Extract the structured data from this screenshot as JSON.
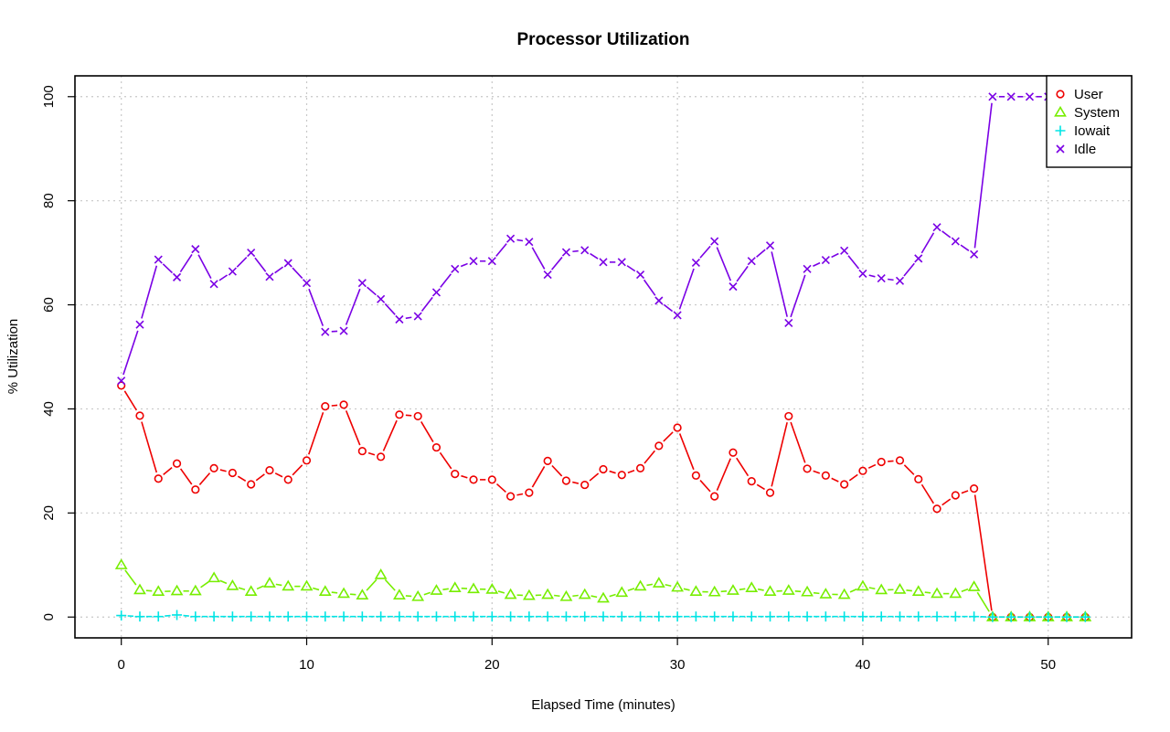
{
  "chart_data": {
    "type": "line",
    "title": "Processor Utilization",
    "xlabel": "Elapsed Time (minutes)",
    "ylabel": "% Utilization",
    "xlim": [
      -2.5,
      54.5
    ],
    "ylim": [
      -4,
      104
    ],
    "x_ticks": [
      "0",
      "10",
      "20",
      "30",
      "40",
      "50"
    ],
    "y_ticks": [
      "0",
      "20",
      "40",
      "60",
      "80",
      "100"
    ],
    "grid": true,
    "legend_position": "top-right",
    "x": [
      0,
      1,
      2,
      3,
      4,
      5,
      6,
      7,
      8,
      9,
      10,
      11,
      12,
      13,
      14,
      15,
      16,
      17,
      18,
      19,
      20,
      21,
      22,
      23,
      24,
      25,
      26,
      27,
      28,
      29,
      30,
      31,
      32,
      33,
      34,
      35,
      36,
      37,
      38,
      39,
      40,
      41,
      42,
      43,
      44,
      45,
      46,
      47,
      48,
      49,
      50,
      51,
      52
    ],
    "series": [
      {
        "name": "User",
        "color": "#ee0000",
        "marker": "circle",
        "values": [
          44.5,
          38.7,
          26.6,
          29.5,
          24.5,
          28.6,
          27.7,
          25.5,
          28.2,
          26.4,
          30.1,
          40.5,
          40.8,
          31.9,
          30.8,
          38.9,
          38.6,
          32.6,
          27.5,
          26.4,
          26.4,
          23.2,
          23.9,
          30.0,
          26.2,
          25.4,
          28.4,
          27.3,
          28.6,
          32.9,
          36.4,
          27.2,
          23.2,
          31.6,
          26.1,
          23.9,
          38.6,
          28.5,
          27.2,
          25.5,
          28.1,
          29.8,
          30.1,
          26.5,
          20.8,
          23.4,
          24.7,
          0,
          0,
          0,
          0,
          0,
          0
        ]
      },
      {
        "name": "System",
        "color": "#77ee00",
        "marker": "triangle",
        "values": [
          10.0,
          5.2,
          4.9,
          5.0,
          5.0,
          7.5,
          6.0,
          4.9,
          6.5,
          5.9,
          5.9,
          4.9,
          4.5,
          4.2,
          8.1,
          4.2,
          3.9,
          5.1,
          5.6,
          5.4,
          5.3,
          4.3,
          4.1,
          4.3,
          3.9,
          4.3,
          3.6,
          4.7,
          5.9,
          6.5,
          5.7,
          4.9,
          4.8,
          5.1,
          5.6,
          4.9,
          5.1,
          4.8,
          4.4,
          4.3,
          5.9,
          5.2,
          5.3,
          4.9,
          4.5,
          4.5,
          5.8,
          0,
          0,
          0,
          0,
          0,
          0
        ]
      },
      {
        "name": "Iowait",
        "color": "#00e5e5",
        "marker": "plus",
        "values": [
          0.3,
          0.1,
          0.1,
          0.4,
          0.1,
          0.1,
          0.1,
          0.1,
          0.1,
          0.1,
          0.1,
          0.1,
          0.1,
          0.1,
          0.1,
          0.1,
          0.1,
          0.1,
          0.1,
          0.1,
          0.1,
          0.1,
          0.1,
          0.1,
          0.1,
          0.1,
          0.1,
          0.1,
          0.1,
          0.1,
          0.1,
          0.1,
          0.1,
          0.1,
          0.1,
          0.1,
          0.1,
          0.1,
          0.1,
          0.1,
          0.1,
          0.1,
          0.1,
          0.1,
          0.1,
          0.1,
          0.1,
          0,
          0,
          0,
          0,
          0,
          0
        ]
      },
      {
        "name": "Idle",
        "color": "#7a00e5",
        "marker": "cross",
        "values": [
          45.4,
          56.2,
          68.7,
          65.3,
          70.7,
          64.0,
          66.4,
          70.0,
          65.4,
          68.0,
          64.2,
          54.8,
          55.0,
          64.2,
          61.1,
          57.2,
          57.8,
          62.4,
          66.9,
          68.4,
          68.4,
          72.7,
          72.1,
          65.8,
          70.1,
          70.5,
          68.2,
          68.2,
          65.8,
          60.8,
          58.0,
          68.1,
          72.2,
          63.5,
          68.4,
          71.4,
          56.5,
          66.9,
          68.6,
          70.4,
          66.0,
          65.1,
          64.6,
          68.9,
          74.9,
          72.2,
          69.7,
          100,
          100,
          100,
          100,
          100,
          100
        ]
      }
    ]
  }
}
